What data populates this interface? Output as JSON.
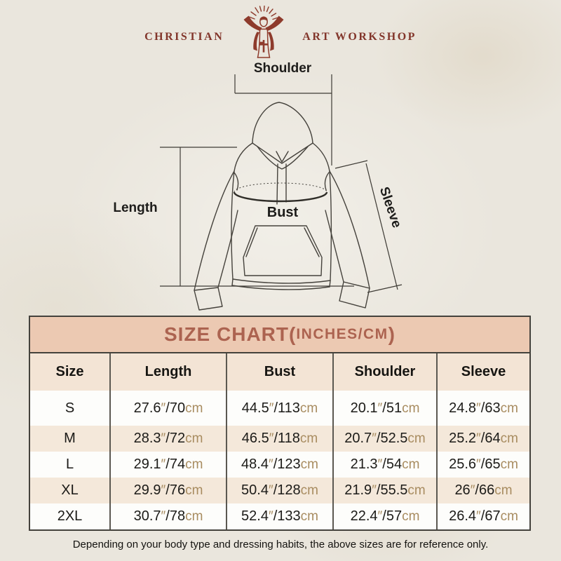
{
  "brand": {
    "left": "CHRISTIAN",
    "right": "ART WORKSHOP"
  },
  "diagram": {
    "labels": {
      "shoulder": "Shoulder",
      "length": "Length",
      "bust": "Bust",
      "sleeve": "Sleeve"
    }
  },
  "size_chart": {
    "title_prefix": "SIZE CHART(",
    "title_unit": "INCHES/CM",
    "title_suffix": ")",
    "columns": [
      "Size",
      "Length",
      "Bust",
      "Shoulder",
      "Sleeve"
    ],
    "rows": [
      {
        "size": "S",
        "measures": [
          {
            "in": "27.6",
            "cm": "70"
          },
          {
            "in": "44.5",
            "cm": "113"
          },
          {
            "in": "20.1",
            "cm": "51"
          },
          {
            "in": "24.8",
            "cm": "63"
          }
        ]
      },
      {
        "size": "M",
        "measures": [
          {
            "in": "28.3",
            "cm": "72"
          },
          {
            "in": "46.5",
            "cm": "118"
          },
          {
            "in": "20.7",
            "cm": "52.5"
          },
          {
            "in": "25.2",
            "cm": "64"
          }
        ]
      },
      {
        "size": "L",
        "measures": [
          {
            "in": "29.1",
            "cm": "74"
          },
          {
            "in": "48.4",
            "cm": "123"
          },
          {
            "in": "21.3",
            "cm": "54"
          },
          {
            "in": "25.6",
            "cm": "65"
          }
        ]
      },
      {
        "size": "XL",
        "measures": [
          {
            "in": "29.9",
            "cm": "76"
          },
          {
            "in": "50.4",
            "cm": "128"
          },
          {
            "in": "21.9",
            "cm": "55.5"
          },
          {
            "in": "26",
            "cm": "66"
          }
        ]
      },
      {
        "size": "2XL",
        "measures": [
          {
            "in": "30.7",
            "cm": "78"
          },
          {
            "in": "52.4",
            "cm": "133"
          },
          {
            "in": "22.4",
            "cm": "57"
          },
          {
            "in": "26.4",
            "cm": "67"
          }
        ]
      }
    ]
  },
  "footer": {
    "note": "Depending on your body type and dressing habits, the above sizes are for reference only."
  },
  "colors": {
    "page_bg": "#eae6dd",
    "logo_maroon": "#8a3a2b",
    "title_band_bg": "#ecc9b2",
    "title_text": "#ac6350",
    "header_row_bg": "#f3e4d5",
    "alt_row_bg": "#f4e8da",
    "unit_text": "#a88c60",
    "line_dark": "#44423c"
  }
}
